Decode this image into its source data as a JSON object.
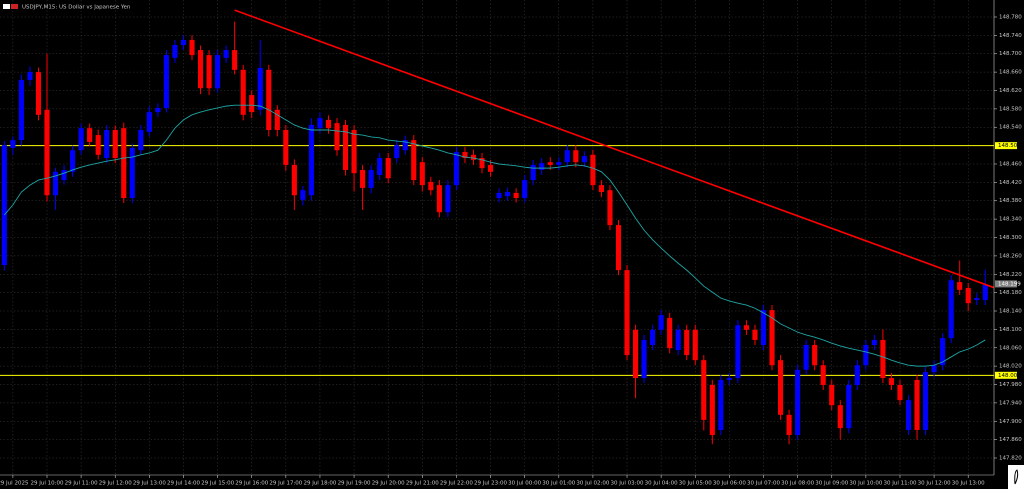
{
  "chart_data": {
    "type": "candlestick",
    "title": "USDJPY,M15: US Dollar vs Japanese Yen",
    "categories": [
      null,
      "29 Jul 2025",
      null,
      null,
      null,
      "29 Jul 10:00",
      null,
      null,
      null,
      "29 Jul 11:00",
      null,
      null,
      null,
      "29 Jul 12:00",
      null,
      null,
      null,
      "29 Jul 13:00",
      null,
      null,
      null,
      "29 Jul 14:00",
      null,
      null,
      null,
      "29 Jul 15:00",
      null,
      null,
      null,
      "29 Jul 16:00",
      null,
      null,
      null,
      "29 Jul 17:00",
      null,
      null,
      null,
      "29 Jul 18:00",
      null,
      null,
      null,
      "29 Jul 19:00",
      null,
      null,
      null,
      "29 Jul 20:00",
      null,
      null,
      null,
      "29 Jul 21:00",
      null,
      null,
      null,
      "29 Jul 22:00",
      null,
      null,
      null,
      "29 Jul 23:00",
      null,
      null,
      null,
      "30 Jul 00:00",
      null,
      null,
      null,
      "30 Jul 01:00",
      null,
      null,
      null,
      "30 Jul 02:00",
      null,
      null,
      null,
      "30 Jul 03:00",
      null,
      null,
      null,
      "30 Jul 04:00",
      null,
      null,
      null,
      "30 Jul 05:00",
      null,
      null,
      null,
      "30 Jul 06:00",
      null,
      null,
      null,
      "30 Jul 07:00",
      null,
      null,
      null,
      "30 Jul 08:00",
      null,
      null,
      null,
      "30 Jul 09:00",
      null,
      null,
      null,
      "30 Jul 10:00",
      null,
      null,
      null,
      "30 Jul 11:00",
      null,
      null,
      null,
      "30 Jul 12:00",
      null,
      null,
      null,
      "30 Jul 13:00",
      null,
      null
    ],
    "open": [
      148.24,
      148.495,
      148.512,
      148.643,
      148.66,
      148.578,
      148.392,
      148.425,
      148.443,
      148.49,
      148.538,
      148.523,
      148.473,
      148.534,
      148.538,
      148.386,
      148.49,
      148.53,
      148.573,
      148.582,
      148.691,
      148.719,
      148.73,
      148.708,
      148.697,
      148.625,
      148.691,
      148.708,
      148.665,
      148.61,
      148.578,
      148.665,
      148.578,
      148.534,
      148.458,
      148.382,
      148.392,
      148.538,
      148.556,
      148.549,
      148.545,
      148.534,
      148.447,
      148.408,
      148.436,
      148.473,
      148.473,
      148.49,
      148.512,
      148.464,
      148.421,
      148.414,
      148.355,
      148.414,
      148.486,
      148.48,
      148.473,
      148.458,
      148.386,
      148.39,
      148.397,
      148.386,
      148.425,
      148.447,
      148.464,
      148.458,
      148.464,
      148.49,
      148.464,
      148.48,
      148.414,
      148.403,
      148.327,
      148.229,
      148.099,
      147.994,
      148.066,
      148.099,
      148.125,
      148.055,
      148.099,
      148.099,
      148.033,
      147.979,
      147.881,
      147.99,
      147.994,
      148.109,
      148.099,
      148.066,
      148.142,
      148.033,
      147.914,
      147.87,
      148.012,
      148.066,
      148.022,
      147.979,
      147.935,
      147.885,
      147.979,
      148.022,
      148.066,
      148.077,
      147.994,
      147.979,
      147.881,
      147.99,
      147.881,
      148.007,
      148.022,
      148.081,
      148.203,
      148.19,
      148.164,
      148.164
    ],
    "high": [
      148.51,
      148.52,
      148.655,
      148.672,
      148.67,
      148.7,
      148.452,
      148.458,
      148.5,
      148.548,
      148.548,
      148.535,
      148.545,
      148.544,
      148.55,
      148.505,
      148.545,
      148.585,
      148.592,
      148.708,
      148.73,
      148.74,
      148.74,
      148.718,
      148.708,
      148.708,
      148.718,
      148.77,
      148.676,
      148.62,
      148.73,
      148.676,
      148.588,
      148.545,
      148.47,
      148.412,
      148.56,
      148.572,
      148.566,
      148.56,
      148.556,
      148.545,
      148.458,
      148.458,
      148.484,
      148.484,
      148.512,
      148.522,
      148.523,
      148.475,
      148.432,
      148.425,
      148.425,
      148.497,
      148.497,
      148.491,
      148.484,
      148.469,
      148.407,
      148.409,
      148.407,
      148.436,
      148.469,
      148.473,
      148.475,
      148.475,
      148.501,
      148.501,
      148.488,
      148.491,
      148.425,
      148.414,
      148.338,
      148.24,
      148.11,
      148.088,
      148.11,
      148.142,
      148.136,
      148.11,
      148.11,
      148.11,
      148.044,
      147.99,
      148.001,
      148.005,
      148.12,
      148.12,
      148.11,
      148.153,
      148.153,
      148.044,
      147.925,
      148.023,
      148.077,
      148.077,
      148.033,
      147.99,
      147.946,
      147.99,
      148.033,
      148.077,
      148.088,
      148.1,
      148.005,
      147.99,
      147.957,
      148.001,
      148.018,
      148.033,
      148.092,
      148.218,
      148.25,
      148.201,
      148.179,
      148.23
    ],
    "low": [
      148.228,
      148.48,
      148.5,
      148.63,
      148.555,
      148.378,
      148.36,
      148.415,
      148.432,
      148.48,
      148.498,
      148.47,
      148.463,
      148.462,
      148.375,
      148.375,
      148.48,
      148.52,
      148.563,
      148.572,
      148.68,
      148.708,
      148.686,
      148.612,
      148.61,
      148.615,
      148.68,
      148.655,
      148.555,
      148.56,
      148.566,
      148.52,
      148.52,
      148.445,
      148.36,
      148.37,
      148.38,
      148.526,
      148.526,
      148.478,
      148.435,
      148.4,
      148.36,
      148.396,
      148.425,
      148.418,
      148.462,
      148.48,
      148.414,
      148.4,
      148.392,
      148.344,
      148.344,
      148.403,
      148.462,
      148.458,
      148.44,
      148.432,
      148.376,
      148.38,
      148.376,
      148.376,
      148.414,
      148.436,
      148.447,
      148.447,
      148.453,
      148.453,
      148.453,
      148.403,
      148.388,
      148.316,
      148.218,
      148.033,
      147.95,
      147.983,
      148.055,
      148.088,
      148.048,
      148.044,
      148.033,
      148.022,
      147.88,
      147.85,
      147.87,
      147.979,
      147.983,
      148.088,
      148.066,
      148.055,
      148.011,
      147.903,
      147.85,
      147.859,
      148.001,
      148.011,
      147.968,
      147.924,
      147.86,
      147.874,
      147.968,
      148.011,
      148.055,
      147.983,
      147.968,
      147.935,
      147.87,
      147.86,
      147.87,
      147.996,
      148.011,
      148.07,
      148.175,
      148.14,
      148.153,
      148.153
    ],
    "close": [
      148.501,
      148.512,
      148.643,
      148.66,
      148.567,
      148.392,
      148.443,
      148.447,
      148.49,
      148.538,
      148.508,
      148.48,
      148.534,
      148.473,
      148.386,
      148.495,
      148.534,
      148.573,
      148.582,
      148.697,
      148.719,
      148.73,
      148.697,
      148.625,
      148.625,
      148.697,
      148.708,
      148.665,
      148.567,
      148.573,
      148.669,
      148.534,
      148.534,
      148.458,
      148.392,
      148.403,
      148.545,
      148.56,
      148.538,
      148.49,
      148.447,
      148.44,
      148.408,
      148.447,
      148.473,
      148.429,
      148.501,
      148.512,
      148.425,
      148.414,
      148.403,
      148.355,
      148.414,
      148.486,
      148.473,
      148.469,
      148.451,
      148.443,
      148.397,
      148.399,
      148.386,
      148.425,
      148.458,
      148.462,
      148.458,
      148.464,
      148.49,
      148.464,
      148.477,
      148.414,
      148.399,
      148.327,
      148.229,
      148.044,
      147.994,
      148.077,
      148.099,
      148.131,
      148.059,
      148.099,
      148.044,
      148.033,
      147.903,
      147.87,
      147.99,
      147.994,
      148.109,
      148.099,
      148.077,
      148.142,
      148.022,
      147.914,
      147.87,
      148.012,
      148.066,
      148.022,
      147.979,
      147.935,
      147.885,
      147.979,
      148.022,
      148.066,
      148.077,
      147.994,
      147.979,
      147.946,
      147.946,
      147.881,
      148.007,
      148.022,
      148.081,
      148.207,
      148.186,
      148.157,
      148.168,
      148.197
    ],
    "up_color": "#0000ff",
    "down_color": "#ff0000",
    "ma": {
      "color": "#1fa5a5",
      "values": [
        148.349,
        148.371,
        148.399,
        148.414,
        148.425,
        148.429,
        148.434,
        148.44,
        148.447,
        148.453,
        148.458,
        148.462,
        148.466,
        148.469,
        148.473,
        148.475,
        148.48,
        148.484,
        148.49,
        148.512,
        148.538,
        148.556,
        148.567,
        148.573,
        148.578,
        148.582,
        148.586,
        148.588,
        148.588,
        148.588,
        148.586,
        148.578,
        148.567,
        148.556,
        148.545,
        148.538,
        148.534,
        148.534,
        148.534,
        148.532,
        148.53,
        148.525,
        148.523,
        148.519,
        148.517,
        148.512,
        148.51,
        148.508,
        148.504,
        148.499,
        148.495,
        148.49,
        148.484,
        148.48,
        148.475,
        148.473,
        148.469,
        148.464,
        148.46,
        148.458,
        148.456,
        148.453,
        148.451,
        148.451,
        148.451,
        148.453,
        148.456,
        148.458,
        148.456,
        148.451,
        148.443,
        148.425,
        148.399,
        148.371,
        148.342,
        148.316,
        148.295,
        148.277,
        148.26,
        148.244,
        148.229,
        148.212,
        148.194,
        148.181,
        148.168,
        148.162,
        148.157,
        148.153,
        148.146,
        148.136,
        148.125,
        148.112,
        148.103,
        148.094,
        148.088,
        148.083,
        148.077,
        148.07,
        148.064,
        148.059,
        148.055,
        148.051,
        148.046,
        148.04,
        148.033,
        148.027,
        148.022,
        148.02,
        148.02,
        148.022,
        148.029,
        148.04,
        148.051,
        148.057,
        148.066,
        148.077
      ]
    },
    "trendline": {
      "color": "#ff0000",
      "start_index": 27,
      "start_price": 148.795,
      "end_index": 116,
      "end_price": 148.191
    },
    "hlines": [
      {
        "value": 148.5,
        "label": "148.500",
        "color": "#ffff00"
      },
      {
        "value": 148.0,
        "label": "148.000",
        "color": "#ffff00"
      }
    ],
    "current_price": {
      "value": 148.199,
      "label": "148.199"
    },
    "ylim": [
      147.783,
      148.817
    ],
    "yticks": [
      {
        "value": 148.78,
        "label": "148.780"
      },
      {
        "value": 148.74,
        "label": "148.740"
      },
      {
        "value": 148.7,
        "label": "148.700"
      },
      {
        "value": 148.66,
        "label": "148.660"
      },
      {
        "value": 148.62,
        "label": "148.620"
      },
      {
        "value": 148.58,
        "label": "148.580"
      },
      {
        "value": 148.54,
        "label": "148.540"
      },
      {
        "value": 148.46,
        "label": "148.460"
      },
      {
        "value": 148.42,
        "label": "148.420"
      },
      {
        "value": 148.38,
        "label": "148.380"
      },
      {
        "value": 148.34,
        "label": "148.340"
      },
      {
        "value": 148.3,
        "label": "148.300"
      },
      {
        "value": 148.26,
        "label": "148.260"
      },
      {
        "value": 148.22,
        "label": "148.220"
      },
      {
        "value": 148.18,
        "label": "148.180"
      },
      {
        "value": 148.14,
        "label": "148.140"
      },
      {
        "value": 148.1,
        "label": "148.100"
      },
      {
        "value": 148.06,
        "label": "148.060"
      },
      {
        "value": 148.02,
        "label": "148.020"
      },
      {
        "value": 147.98,
        "label": "147.980"
      },
      {
        "value": 147.94,
        "label": "147.940"
      },
      {
        "value": 147.9,
        "label": "147.900"
      },
      {
        "value": 147.86,
        "label": "147.860"
      },
      {
        "value": 147.82,
        "label": "147.820"
      }
    ],
    "grid": true
  }
}
